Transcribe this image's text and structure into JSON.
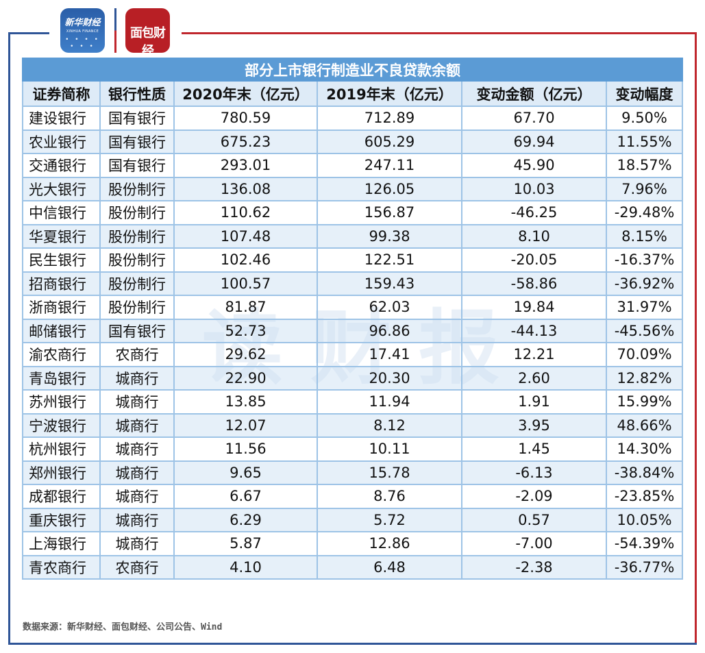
{
  "logos": {
    "xinhua_cn": "新华财经",
    "xinhua_en": "XINHUA FINANCE",
    "mianbao": "面包财经"
  },
  "watermark": "读财报",
  "table": {
    "title": "部分上市银行制造业不良贷款余额",
    "headers": [
      "证券简称",
      "银行性质",
      "2020年末（亿元）",
      "2019年末（亿元）",
      "变动金额（亿元）",
      "变动幅度"
    ],
    "rows": [
      [
        "建设银行",
        "国有银行",
        "780.59",
        "712.89",
        "67.70",
        "9.50%"
      ],
      [
        "农业银行",
        "国有银行",
        "675.23",
        "605.29",
        "69.94",
        "11.55%"
      ],
      [
        "交通银行",
        "国有银行",
        "293.01",
        "247.11",
        "45.90",
        "18.57%"
      ],
      [
        "光大银行",
        "股份制行",
        "136.08",
        "126.05",
        "10.03",
        "7.96%"
      ],
      [
        "中信银行",
        "股份制行",
        "110.62",
        "156.87",
        "-46.25",
        "-29.48%"
      ],
      [
        "华夏银行",
        "股份制行",
        "107.48",
        "99.38",
        "8.10",
        "8.15%"
      ],
      [
        "民生银行",
        "股份制行",
        "102.46",
        "122.51",
        "-20.05",
        "-16.37%"
      ],
      [
        "招商银行",
        "股份制行",
        "100.57",
        "159.43",
        "-58.86",
        "-36.92%"
      ],
      [
        "浙商银行",
        "股份制行",
        "81.87",
        "62.03",
        "19.84",
        "31.97%"
      ],
      [
        "邮储银行",
        "国有银行",
        "52.73",
        "96.86",
        "-44.13",
        "-45.56%"
      ],
      [
        "渝农商行",
        "农商行",
        "29.62",
        "17.41",
        "12.21",
        "70.09%"
      ],
      [
        "青岛银行",
        "城商行",
        "22.90",
        "20.30",
        "2.60",
        "12.82%"
      ],
      [
        "苏州银行",
        "城商行",
        "13.85",
        "11.94",
        "1.91",
        "15.99%"
      ],
      [
        "宁波银行",
        "城商行",
        "12.07",
        "8.12",
        "3.95",
        "48.66%"
      ],
      [
        "杭州银行",
        "城商行",
        "11.56",
        "10.11",
        "1.45",
        "14.30%"
      ],
      [
        "郑州银行",
        "城商行",
        "9.65",
        "15.78",
        "-6.13",
        "-38.84%"
      ],
      [
        "成都银行",
        "城商行",
        "6.67",
        "8.76",
        "-2.09",
        "-23.85%"
      ],
      [
        "重庆银行",
        "城商行",
        "6.29",
        "5.72",
        "0.57",
        "10.05%"
      ],
      [
        "上海银行",
        "城商行",
        "5.87",
        "12.86",
        "-7.00",
        "-54.39%"
      ],
      [
        "青农商行",
        "农商行",
        "4.10",
        "6.48",
        "-2.38",
        "-36.77%"
      ]
    ]
  },
  "source": "数据来源：新华财经、面包财经、公司公告、Wind",
  "colors": {
    "title_bg": "#5b9bd5",
    "header_bg": "#deebf7",
    "border": "#9dc3e6",
    "brand_blue": "#2f5597",
    "brand_red": "#c0262d"
  }
}
